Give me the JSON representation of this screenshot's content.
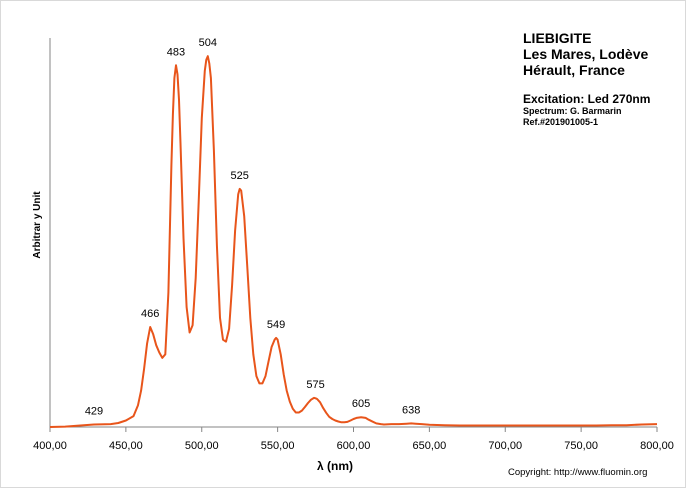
{
  "chart_data": {
    "type": "line",
    "title": "LIEBIGITE",
    "subtitle_lines": [
      "Les Mares, Lodève",
      "Hérault, France"
    ],
    "excitation": "Excitation:  Led 270nm",
    "spectrum_credit": "Spectrum: G. Barmarin",
    "reference": "Ref.#201901005-1",
    "xlabel": "λ (nm)",
    "ylabel": "Arbitrar y Unit",
    "xlim": [
      400,
      800
    ],
    "ylim": [
      0,
      1.07
    ],
    "x_ticks": [
      400,
      450,
      500,
      550,
      600,
      650,
      700,
      750,
      800
    ],
    "x_tick_labels": [
      "400,00",
      "450,00",
      "500,00",
      "550,00",
      "600,00",
      "650,00",
      "700,00",
      "750,00",
      "800,00"
    ],
    "grid": false,
    "series": [
      {
        "color": "#e8551b",
        "x": [
          400,
          410,
          420,
          429,
          440,
          445,
          450,
          455,
          458,
          460,
          462,
          464,
          466,
          468,
          470,
          472,
          474,
          476,
          478,
          480,
          481,
          482,
          483,
          484,
          485,
          486,
          488,
          490,
          492,
          494,
          496,
          498,
          500,
          502,
          503,
          504,
          505,
          506,
          508,
          510,
          512,
          514,
          516,
          518,
          520,
          522,
          524,
          525,
          526,
          528,
          530,
          532,
          534,
          536,
          538,
          540,
          542,
          544,
          546,
          548,
          549,
          550,
          552,
          554,
          556,
          558,
          560,
          562,
          564,
          566,
          568,
          570,
          572,
          574,
          575,
          576,
          578,
          580,
          582,
          584,
          586,
          588,
          590,
          592,
          594,
          596,
          598,
          600,
          602,
          605,
          608,
          610,
          612,
          615,
          618,
          620,
          625,
          630,
          635,
          638,
          641,
          645,
          650,
          660,
          670,
          680,
          690,
          700,
          710,
          720,
          730,
          740,
          750,
          760,
          770,
          780,
          790,
          800
        ],
        "y": [
          0.0,
          0.001,
          0.004,
          0.007,
          0.008,
          0.011,
          0.018,
          0.03,
          0.06,
          0.1,
          0.16,
          0.23,
          0.275,
          0.255,
          0.225,
          0.205,
          0.19,
          0.2,
          0.37,
          0.72,
          0.86,
          0.96,
          0.995,
          0.97,
          0.9,
          0.78,
          0.52,
          0.33,
          0.26,
          0.28,
          0.41,
          0.62,
          0.85,
          0.98,
          1.01,
          1.02,
          1.0,
          0.96,
          0.76,
          0.5,
          0.3,
          0.24,
          0.235,
          0.27,
          0.39,
          0.54,
          0.64,
          0.655,
          0.65,
          0.58,
          0.44,
          0.3,
          0.2,
          0.14,
          0.12,
          0.12,
          0.14,
          0.18,
          0.22,
          0.24,
          0.245,
          0.24,
          0.2,
          0.145,
          0.1,
          0.07,
          0.05,
          0.04,
          0.04,
          0.045,
          0.055,
          0.066,
          0.075,
          0.08,
          0.079,
          0.077,
          0.068,
          0.052,
          0.039,
          0.028,
          0.022,
          0.018,
          0.015,
          0.013,
          0.013,
          0.014,
          0.018,
          0.022,
          0.025,
          0.027,
          0.025,
          0.02,
          0.016,
          0.01,
          0.008,
          0.007,
          0.008,
          0.008,
          0.009,
          0.01,
          0.009,
          0.008,
          0.006,
          0.005,
          0.004,
          0.004,
          0.004,
          0.004,
          0.004,
          0.004,
          0.004,
          0.004,
          0.004,
          0.004,
          0.005,
          0.005,
          0.007,
          0.008
        ]
      }
    ],
    "annotations": [
      {
        "text": "429",
        "x": 429,
        "y": 0.007
      },
      {
        "text": "466",
        "x": 466,
        "y": 0.275
      },
      {
        "text": "483",
        "x": 483,
        "y": 0.995
      },
      {
        "text": "504",
        "x": 504,
        "y": 1.02
      },
      {
        "text": "525",
        "x": 525,
        "y": 0.655
      },
      {
        "text": "549",
        "x": 549,
        "y": 0.245
      },
      {
        "text": "575",
        "x": 575,
        "y": 0.08
      },
      {
        "text": "605",
        "x": 605,
        "y": 0.027
      },
      {
        "text": "638",
        "x": 638,
        "y": 0.01
      }
    ]
  },
  "copyright": "Copyright: http://www.fluomin.org"
}
